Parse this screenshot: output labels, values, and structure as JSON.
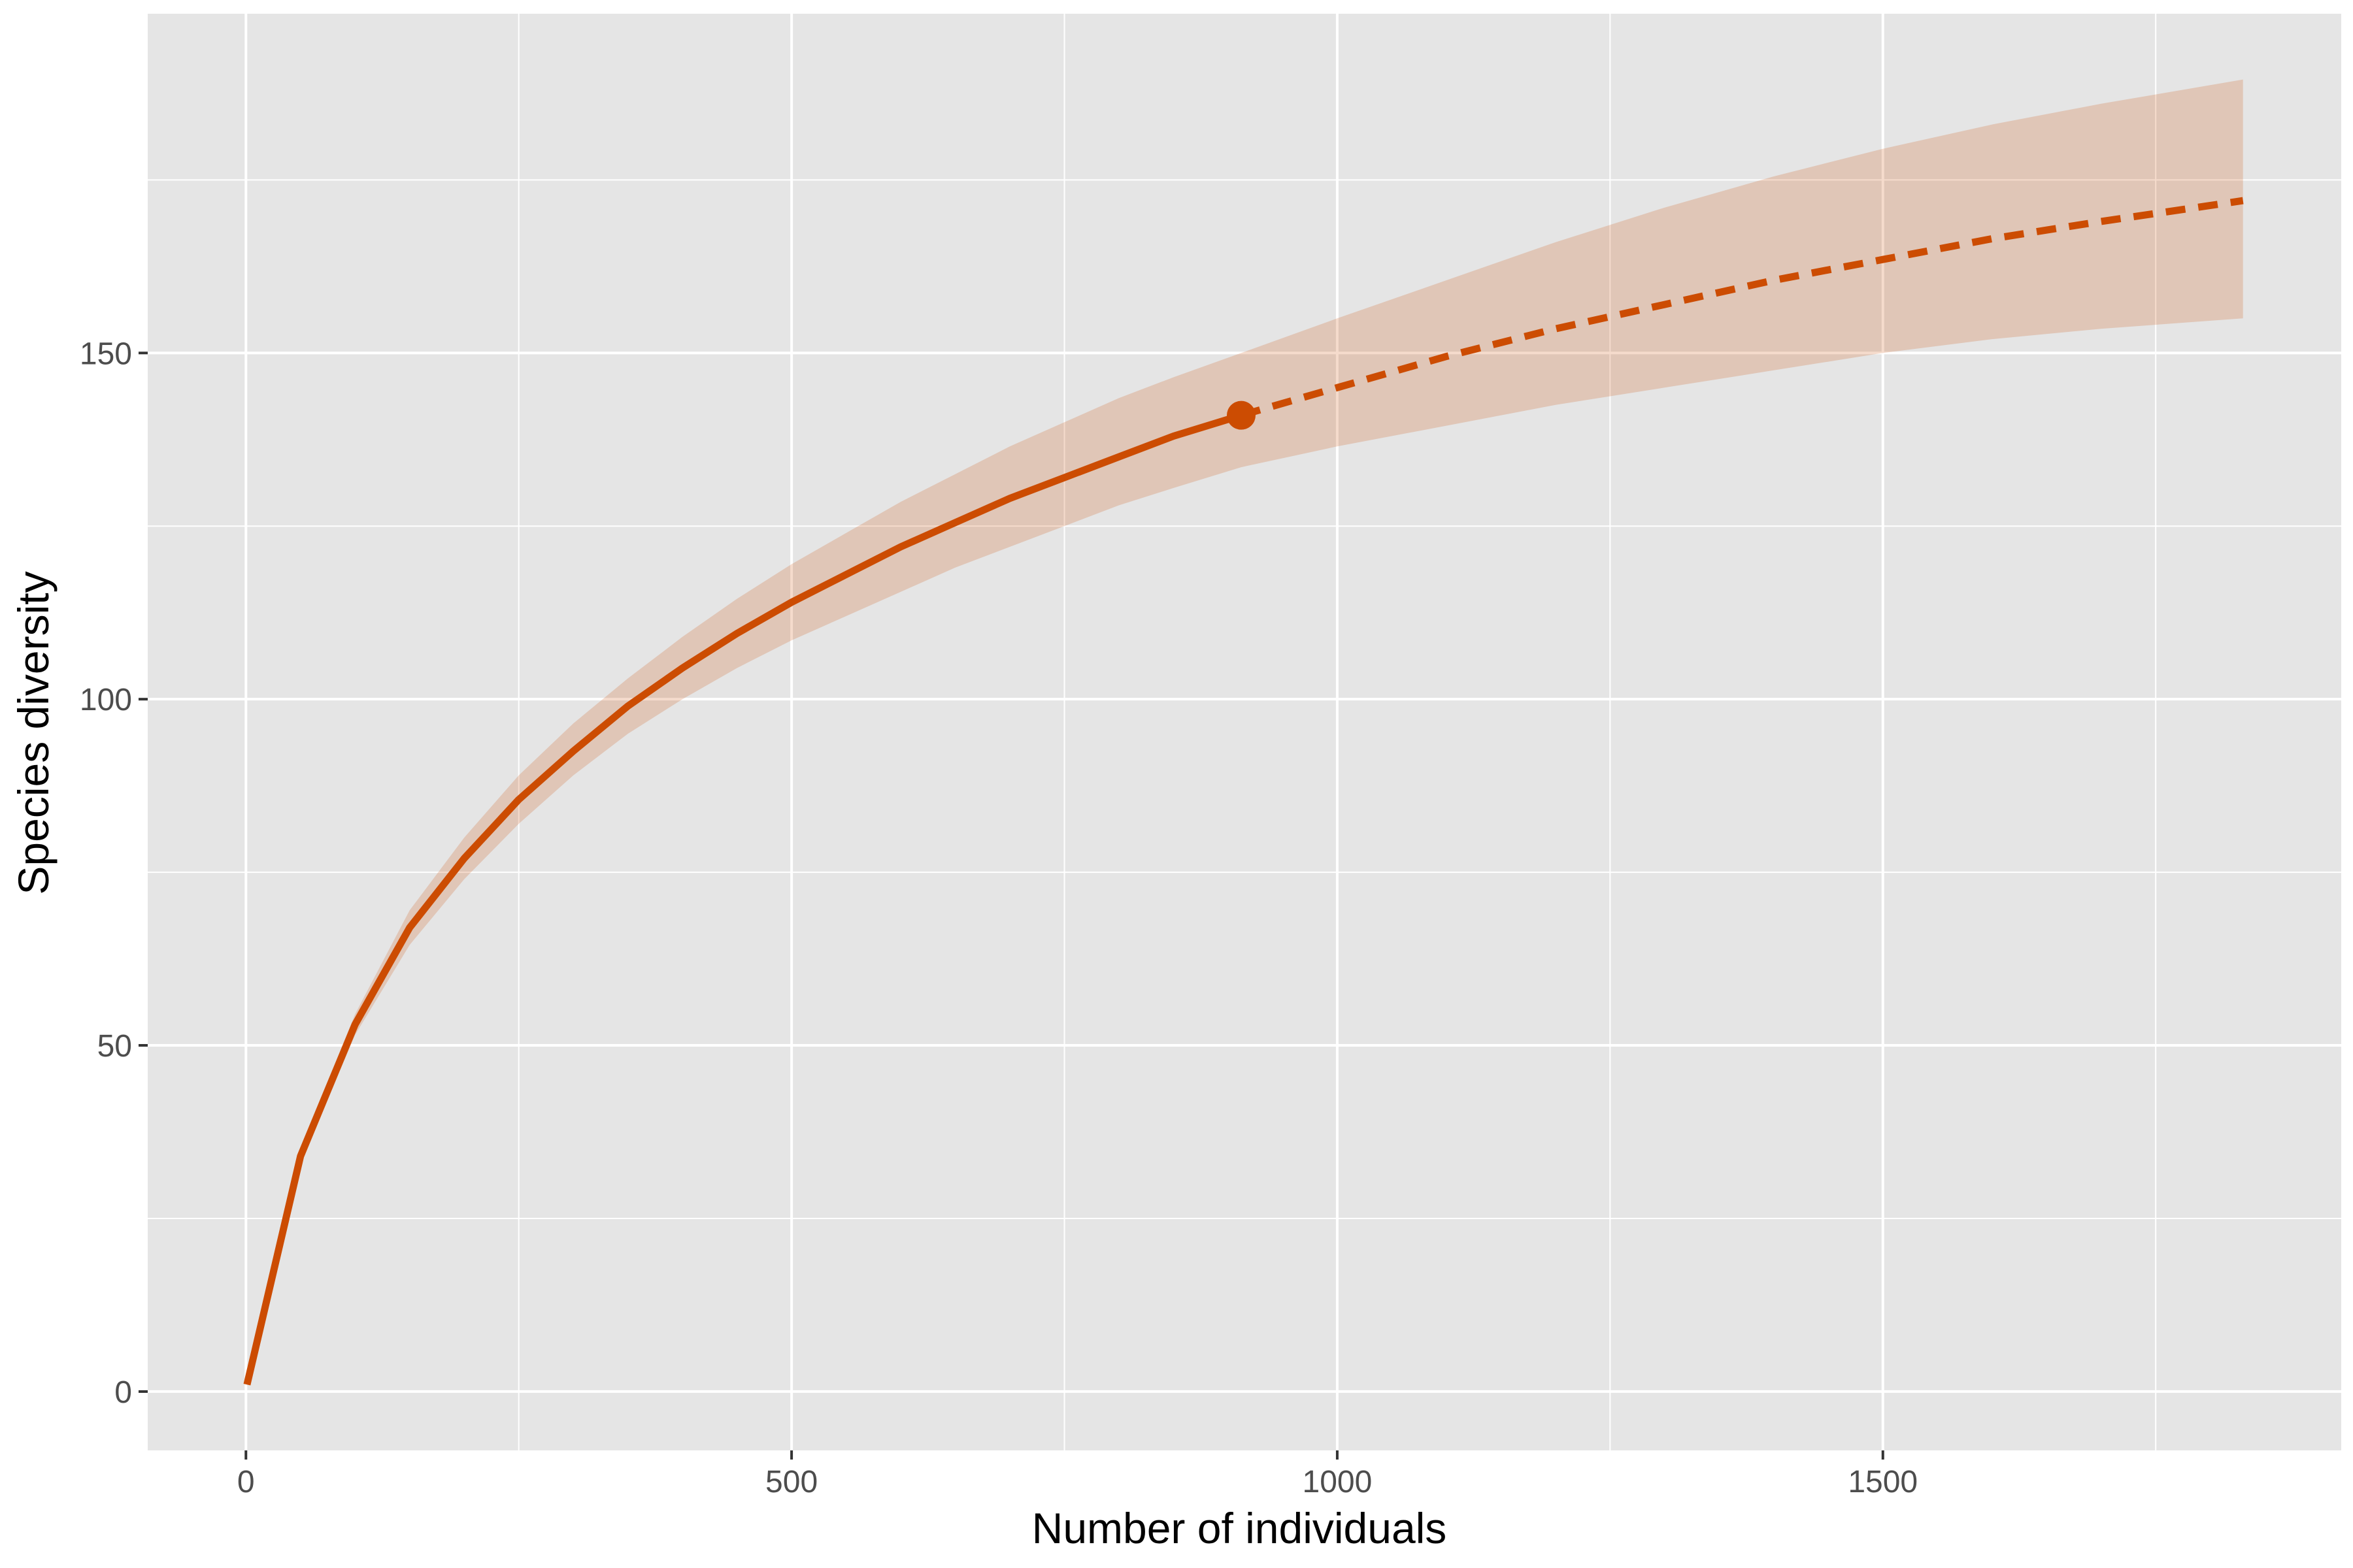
{
  "chart_data": {
    "type": "line",
    "xlabel": "Number of individuals",
    "ylabel": "Species diversity",
    "xlim": [
      -90,
      1920
    ],
    "ylim": [
      -8.5,
      199
    ],
    "x_ticks": [
      0,
      500,
      1000,
      1500
    ],
    "x_tick_labels": [
      "0",
      "500",
      "1000",
      "1500"
    ],
    "y_ticks": [
      0,
      50,
      100,
      150
    ],
    "y_tick_labels": [
      "0",
      "50",
      "100",
      "150"
    ],
    "x_minor_gridlines": [
      250,
      750,
      1250,
      1750
    ],
    "y_minor_gridlines": [
      25,
      75,
      125,
      175
    ],
    "grid": true,
    "legend": "none",
    "colors": {
      "panel_background": "#e5e5e5",
      "gridline": "#ffffff",
      "line": "#cc4c02",
      "ribbon": "#cc4c02",
      "ribbon_opacity": 0.2
    },
    "interpolated": {
      "x": [
        1,
        50,
        100,
        150,
        200,
        250,
        300,
        350,
        400,
        450,
        500,
        550,
        600,
        650,
        700,
        750,
        800,
        850,
        912
      ],
      "y": [
        1,
        34,
        53,
        67,
        77,
        85.5,
        92.5,
        99,
        104.5,
        109.5,
        114,
        118,
        122,
        125.5,
        129,
        132,
        135,
        138,
        141
      ],
      "lower": [
        1,
        33,
        51.5,
        64.5,
        74,
        82,
        89,
        95,
        100,
        104.5,
        108.5,
        112,
        115.5,
        119,
        122,
        125,
        128,
        130.5,
        133.5
      ],
      "upper": [
        1,
        35,
        54.5,
        69.5,
        80,
        89,
        96.5,
        103,
        109,
        114.5,
        119.5,
        124,
        128.5,
        132.5,
        136.5,
        140,
        143.5,
        146.5,
        150
      ]
    },
    "observed_point": {
      "x": 912,
      "y": 141
    },
    "extrapolated": {
      "x": [
        912,
        1000,
        1100,
        1200,
        1300,
        1400,
        1500,
        1600,
        1700,
        1830
      ],
      "y": [
        141,
        145,
        149.5,
        153.5,
        157,
        160.5,
        163.5,
        166.5,
        169,
        172
      ],
      "lower": [
        133.5,
        136.5,
        139.5,
        142.5,
        145,
        147.5,
        150,
        152,
        153.5,
        155
      ],
      "upper": [
        150,
        155,
        160.5,
        166,
        171,
        175.5,
        179.5,
        183,
        186,
        189.5
      ]
    }
  }
}
